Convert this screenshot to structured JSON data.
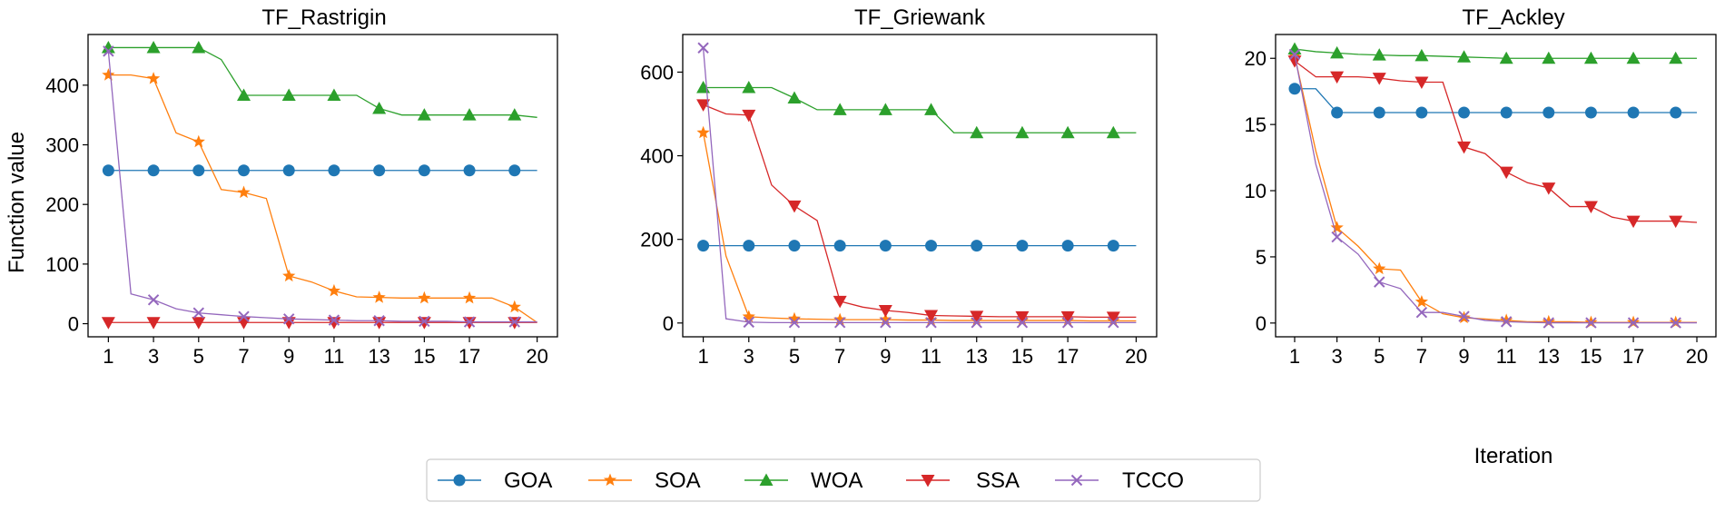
{
  "figure": {
    "ylabel": "Function value",
    "xlabel_last": "Iteration"
  },
  "colors": {
    "GOA": "#1f77b4",
    "SOA": "#ff7f0e",
    "WOA": "#2ca02c",
    "SSA": "#d62728",
    "TCCO": "#9467bd"
  },
  "markers": {
    "GOA": "circle",
    "SOA": "star",
    "WOA": "triangle-up",
    "SSA": "triangle-down",
    "TCCO": "x"
  },
  "legend": [
    "GOA",
    "SOA",
    "WOA",
    "SSA",
    "TCCO"
  ],
  "chart_data": [
    {
      "type": "line",
      "title": "TF_Rastrigin",
      "xlabel": "",
      "ylabel": "Function value",
      "x": [
        1,
        2,
        3,
        4,
        5,
        6,
        7,
        8,
        9,
        10,
        11,
        12,
        13,
        14,
        15,
        16,
        17,
        18,
        19,
        20
      ],
      "xticks": [
        1,
        3,
        5,
        7,
        9,
        11,
        13,
        15,
        17,
        20
      ],
      "xlim": [
        0.1,
        20.9
      ],
      "ylim": [
        -22,
        485
      ],
      "yticks": [
        0,
        100,
        200,
        300,
        400
      ],
      "marker_every": [
        1,
        3,
        5,
        7,
        9,
        11,
        13,
        15,
        17,
        19
      ],
      "series": [
        {
          "name": "GOA",
          "values": [
            257,
            257,
            257,
            257,
            257,
            257,
            257,
            257,
            257,
            257,
            257,
            257,
            257,
            257,
            257,
            257,
            257,
            257,
            257,
            257
          ]
        },
        {
          "name": "SOA",
          "values": [
            417,
            417,
            411,
            320,
            305,
            225,
            220,
            210,
            80,
            70,
            55,
            45,
            44,
            43,
            43,
            43,
            43,
            43,
            28,
            2
          ]
        },
        {
          "name": "WOA",
          "values": [
            463,
            463,
            463,
            463,
            463,
            443,
            383,
            383,
            383,
            383,
            383,
            383,
            361,
            350,
            350,
            350,
            350,
            350,
            350,
            346
          ]
        },
        {
          "name": "SSA",
          "values": [
            2,
            2,
            2,
            2,
            2,
            2,
            2,
            2,
            2,
            2,
            2,
            2,
            2,
            2,
            2,
            2,
            2,
            2,
            2,
            2
          ]
        },
        {
          "name": "TCCO",
          "values": [
            457,
            50,
            40,
            25,
            18,
            15,
            12,
            10,
            8,
            7,
            6,
            5,
            5,
            4,
            4,
            4,
            3,
            3,
            3,
            3
          ]
        }
      ]
    },
    {
      "type": "line",
      "title": "TF_Griewank",
      "xlabel": "",
      "ylabel": "",
      "x": [
        1,
        2,
        3,
        4,
        5,
        6,
        7,
        8,
        9,
        10,
        11,
        12,
        13,
        14,
        15,
        16,
        17,
        18,
        19,
        20
      ],
      "xticks": [
        1,
        3,
        5,
        7,
        9,
        11,
        13,
        15,
        17,
        20
      ],
      "xlim": [
        0.1,
        20.9
      ],
      "ylim": [
        -33,
        690
      ],
      "yticks": [
        0,
        200,
        400,
        600
      ],
      "marker_every": [
        1,
        3,
        5,
        7,
        9,
        11,
        13,
        15,
        17,
        19
      ],
      "series": [
        {
          "name": "GOA",
          "values": [
            185,
            185,
            185,
            185,
            185,
            185,
            185,
            185,
            185,
            185,
            185,
            185,
            185,
            185,
            185,
            185,
            185,
            185,
            185,
            185
          ]
        },
        {
          "name": "SOA",
          "values": [
            455,
            160,
            15,
            12,
            10,
            9,
            8,
            8,
            8,
            7,
            7,
            6,
            6,
            6,
            6,
            6,
            6,
            5,
            5,
            5
          ]
        },
        {
          "name": "WOA",
          "values": [
            563,
            563,
            563,
            563,
            538,
            510,
            510,
            510,
            510,
            510,
            510,
            455,
            455,
            455,
            455,
            455,
            455,
            455,
            455,
            455
          ]
        },
        {
          "name": "SSA",
          "values": [
            522,
            500,
            497,
            330,
            280,
            245,
            52,
            38,
            30,
            25,
            18,
            17,
            16,
            15,
            15,
            15,
            15,
            14,
            14,
            14
          ]
        },
        {
          "name": "TCCO",
          "values": [
            658,
            10,
            2,
            1,
            1,
            1,
            1,
            1,
            1,
            1,
            1,
            1,
            1,
            1,
            1,
            1,
            1,
            1,
            1,
            1
          ]
        }
      ]
    },
    {
      "type": "line",
      "title": "TF_Ackley",
      "xlabel": "Iteration",
      "ylabel": "",
      "x": [
        1,
        2,
        3,
        4,
        5,
        6,
        7,
        8,
        9,
        10,
        11,
        12,
        13,
        14,
        15,
        16,
        17,
        18,
        19,
        20
      ],
      "xticks": [
        1,
        3,
        5,
        7,
        9,
        11,
        13,
        15,
        17,
        20
      ],
      "xlim": [
        0.1,
        20.9
      ],
      "ylim": [
        -1.04,
        21.8
      ],
      "yticks": [
        0,
        5,
        10,
        15,
        20
      ],
      "marker_every": [
        1,
        3,
        5,
        7,
        9,
        11,
        13,
        15,
        17,
        19
      ],
      "series": [
        {
          "name": "GOA",
          "values": [
            17.7,
            17.7,
            15.9,
            15.9,
            15.9,
            15.9,
            15.9,
            15.9,
            15.9,
            15.9,
            15.9,
            15.9,
            15.9,
            15.9,
            15.9,
            15.9,
            15.9,
            15.9,
            15.9,
            15.9
          ]
        },
        {
          "name": "SOA",
          "values": [
            20.2,
            13,
            7.2,
            5.8,
            4.1,
            4.0,
            1.6,
            0.7,
            0.4,
            0.3,
            0.2,
            0.1,
            0.1,
            0.1,
            0.05,
            0.05,
            0.05,
            0.05,
            0.05,
            0.05
          ]
        },
        {
          "name": "WOA",
          "values": [
            20.7,
            20.5,
            20.4,
            20.3,
            20.25,
            20.2,
            20.2,
            20.15,
            20.1,
            20.05,
            20.0,
            20.0,
            20.0,
            20.0,
            20.0,
            20.0,
            20.0,
            20.0,
            20.0,
            20.0
          ]
        },
        {
          "name": "SSA",
          "values": [
            19.8,
            18.6,
            18.6,
            18.6,
            18.5,
            18.3,
            18.2,
            18.2,
            13.3,
            12.8,
            11.4,
            10.6,
            10.2,
            8.8,
            8.8,
            8.0,
            7.7,
            7.7,
            7.7,
            7.6
          ]
        },
        {
          "name": "TCCO",
          "values": [
            20.3,
            12,
            6.5,
            5.2,
            3.1,
            2.6,
            0.8,
            0.8,
            0.5,
            0.2,
            0.1,
            0.05,
            0.02,
            0.02,
            0.02,
            0.02,
            0.02,
            0.02,
            0.02,
            0.02
          ]
        }
      ]
    }
  ]
}
